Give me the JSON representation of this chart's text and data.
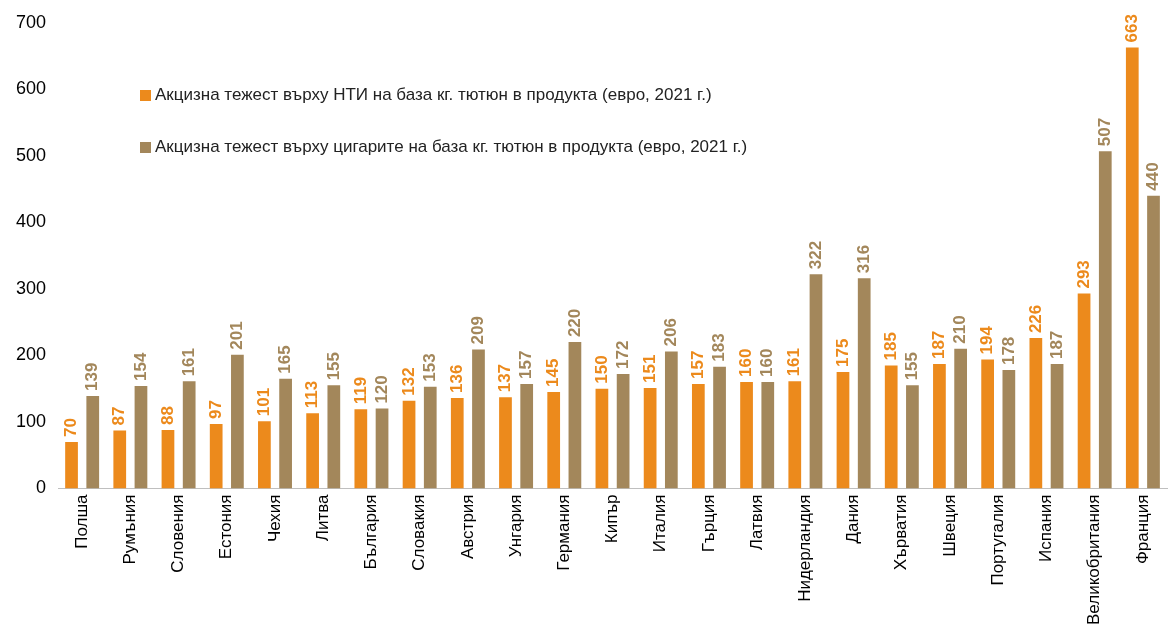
{
  "chart_data": {
    "type": "bar",
    "categories": [
      "Полша",
      "Румъния",
      "Словения",
      "Естония",
      "Чехия",
      "Литва",
      "България",
      "Словакия",
      "Австрия",
      "Унгария",
      "Германия",
      "Кипър",
      "Италия",
      "Гърция",
      "Латвия",
      "Нидерландия",
      "Дания",
      "Хърватия",
      "Швеция",
      "Португалия",
      "Испания",
      "Великобритания",
      "Франция"
    ],
    "series": [
      {
        "name": "Акцизна тежест върху НТИ на база кг. тютюн в продукта (евро, 2021 г.)",
        "color": "#ec8a1c",
        "values": [
          70,
          87,
          88,
          97,
          101,
          113,
          119,
          132,
          136,
          137,
          145,
          150,
          151,
          157,
          160,
          161,
          175,
          185,
          187,
          194,
          226,
          293,
          663
        ]
      },
      {
        "name": "Акцизна тежест върху цигарите на база кг. тютюн в продукта (евро, 2021 г.)",
        "color": "#a3875b",
        "values": [
          139,
          154,
          161,
          201,
          165,
          155,
          120,
          153,
          209,
          157,
          220,
          172,
          206,
          183,
          160,
          322,
          316,
          155,
          210,
          178,
          187,
          507,
          440
        ]
      }
    ],
    "ylim": [
      0,
      700
    ],
    "yticks": [
      0,
      100,
      200,
      300,
      400,
      500,
      600,
      700
    ],
    "grid": false,
    "legend": "top left",
    "data_labels": true
  }
}
